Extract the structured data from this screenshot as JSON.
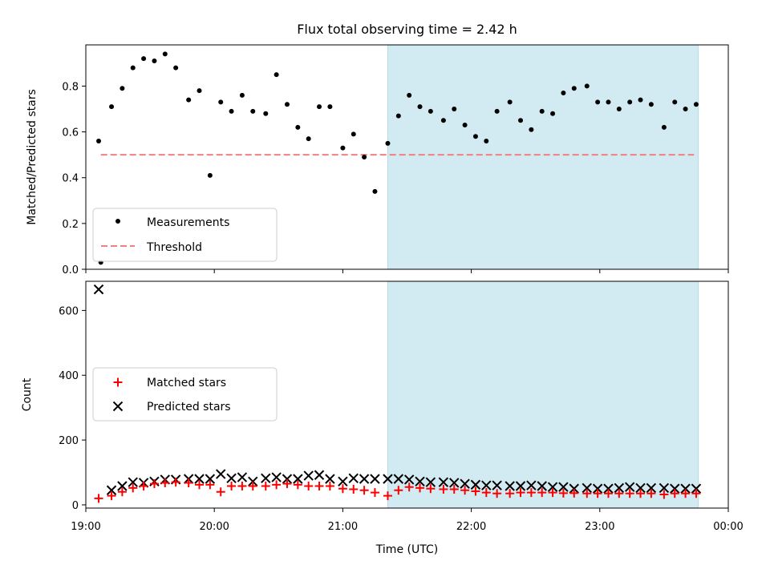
{
  "chart_data": {
    "type": "scatter",
    "title": "Flux total observing time = 2.42 h",
    "xlabel": "Time (UTC)",
    "x_ticks": [
      "19:00",
      "20:00",
      "21:00",
      "22:00",
      "23:00",
      "00:00"
    ],
    "xlim": [
      "19:00",
      "00:00"
    ],
    "shaded_interval": [
      "21:21",
      "23:46"
    ],
    "shade_color": "#add8e6",
    "top_panel": {
      "ylabel": "Matched/Predicted stars",
      "ylim": [
        0,
        0.98
      ],
      "y_ticks": [
        "0.0",
        "0.2",
        "0.4",
        "0.6",
        "0.8"
      ],
      "legend_position": "lower left",
      "series": [
        {
          "name": "Measurements",
          "marker": "dot",
          "color": "#000000",
          "times": [
            "19:06",
            "19:12",
            "19:17",
            "19:22",
            "19:27",
            "19:32",
            "19:37",
            "19:42",
            "19:48",
            "19:53",
            "19:58",
            "20:03",
            "20:08",
            "20:13",
            "20:18",
            "20:24",
            "20:29",
            "20:34",
            "20:39",
            "20:44",
            "20:49",
            "20:54",
            "21:00",
            "21:05",
            "21:10",
            "21:15",
            "21:21",
            "21:26",
            "21:31",
            "21:36",
            "21:41",
            "21:47",
            "21:52",
            "21:57",
            "22:02",
            "22:07",
            "22:12",
            "22:18",
            "22:23",
            "22:28",
            "22:33",
            "22:38",
            "22:43",
            "22:48",
            "22:54",
            "22:59",
            "23:04",
            "23:09",
            "23:14",
            "23:19",
            "23:24",
            "23:30",
            "23:35",
            "23:40",
            "23:45"
          ],
          "values": [
            0.56,
            0.71,
            0.79,
            0.88,
            0.92,
            0.91,
            0.94,
            0.88,
            0.74,
            0.78,
            0.41,
            0.73,
            0.69,
            0.76,
            0.69,
            0.68,
            0.85,
            0.72,
            0.62,
            0.57,
            0.71,
            0.71,
            0.53,
            0.59,
            0.49,
            0.34,
            0.55,
            0.67,
            0.76,
            0.71,
            0.69,
            0.65,
            0.7,
            0.63,
            0.58,
            0.56,
            0.69,
            0.73,
            0.65,
            0.61,
            0.69,
            0.68,
            0.77,
            0.79,
            0.8,
            0.73,
            0.73,
            0.7,
            0.73,
            0.74,
            0.72,
            0.62,
            0.73,
            0.7,
            0.72
          ]
        },
        {
          "name": "Threshold",
          "style": "dashed",
          "color": "#f08080",
          "x_range": [
            "19:07",
            "23:44"
          ],
          "value": 0.5
        }
      ],
      "outliers": [
        {
          "time": "19:07",
          "value": 0.03
        }
      ]
    },
    "bottom_panel": {
      "ylabel": "Count",
      "ylim": [
        -10,
        690
      ],
      "y_ticks": [
        "0",
        "200",
        "400",
        "600"
      ],
      "legend_position": "center left",
      "series": [
        {
          "name": "Matched stars",
          "marker": "plus",
          "color": "#ff0000",
          "times": [
            "19:06",
            "19:12",
            "19:17",
            "19:22",
            "19:27",
            "19:32",
            "19:37",
            "19:42",
            "19:48",
            "19:53",
            "19:58",
            "20:03",
            "20:08",
            "20:13",
            "20:18",
            "20:24",
            "20:29",
            "20:34",
            "20:39",
            "20:44",
            "20:49",
            "20:54",
            "21:00",
            "21:05",
            "21:10",
            "21:15",
            "21:21",
            "21:26",
            "21:31",
            "21:36",
            "21:41",
            "21:47",
            "21:52",
            "21:57",
            "22:02",
            "22:07",
            "22:12",
            "22:18",
            "22:23",
            "22:28",
            "22:33",
            "22:38",
            "22:43",
            "22:48",
            "22:54",
            "22:59",
            "23:04",
            "23:09",
            "23:14",
            "23:19",
            "23:24",
            "23:30",
            "23:35",
            "23:40",
            "23:45"
          ],
          "values": [
            20,
            28,
            40,
            52,
            58,
            65,
            68,
            70,
            68,
            62,
            62,
            40,
            58,
            58,
            58,
            58,
            62,
            65,
            62,
            58,
            58,
            58,
            50,
            48,
            45,
            38,
            28,
            45,
            55,
            52,
            50,
            48,
            48,
            45,
            42,
            38,
            35,
            35,
            38,
            38,
            38,
            38,
            36,
            36,
            35,
            35,
            35,
            35,
            35,
            35,
            35,
            32,
            35,
            35,
            35
          ]
        },
        {
          "name": "Predicted stars",
          "marker": "x",
          "color": "#000000",
          "times": [
            "19:06",
            "19:12",
            "19:17",
            "19:22",
            "19:27",
            "19:32",
            "19:37",
            "19:42",
            "19:48",
            "19:53",
            "19:58",
            "20:03",
            "20:08",
            "20:13",
            "20:18",
            "20:24",
            "20:29",
            "20:34",
            "20:39",
            "20:44",
            "20:49",
            "20:54",
            "21:00",
            "21:05",
            "21:10",
            "21:15",
            "21:21",
            "21:26",
            "21:31",
            "21:36",
            "21:41",
            "21:47",
            "21:52",
            "21:57",
            "22:02",
            "22:07",
            "22:12",
            "22:18",
            "22:23",
            "22:28",
            "22:33",
            "22:38",
            "22:43",
            "22:48",
            "22:54",
            "22:59",
            "23:04",
            "23:09",
            "23:14",
            "23:19",
            "23:24",
            "23:30",
            "23:35",
            "23:40",
            "23:45"
          ],
          "values": [
            665,
            45,
            58,
            70,
            68,
            72,
            78,
            78,
            80,
            80,
            80,
            95,
            82,
            85,
            72,
            82,
            85,
            80,
            80,
            90,
            92,
            80,
            72,
            82,
            80,
            80,
            80,
            80,
            78,
            72,
            70,
            70,
            68,
            65,
            62,
            60,
            60,
            58,
            58,
            60,
            58,
            55,
            55,
            50,
            52,
            50,
            50,
            52,
            55,
            52,
            52,
            52,
            50,
            50,
            50
          ]
        }
      ]
    }
  }
}
